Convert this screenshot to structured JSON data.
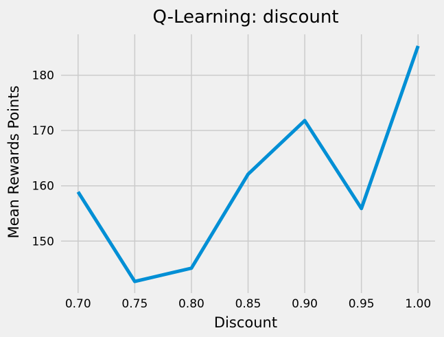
{
  "chart_data": {
    "type": "line",
    "title": "Q-Learning: discount",
    "xlabel": "Discount",
    "ylabel": "Mean Rewards Points",
    "x": [
      0.7,
      0.75,
      0.8,
      0.85,
      0.9,
      0.95,
      1.0
    ],
    "series": [
      {
        "values": [
          158.9,
          142.7,
          145.1,
          162.1,
          171.8,
          155.9,
          185.3
        ]
      }
    ],
    "xticks": [
      "0.70",
      "0.75",
      "0.80",
      "0.85",
      "0.90",
      "0.95",
      "1.00"
    ],
    "yticks": [
      "150",
      "160",
      "170",
      "180"
    ],
    "xlim": [
      0.685,
      1.015
    ],
    "ylim": [
      140.6,
      187.4
    ],
    "grid": true,
    "legend": "none",
    "colors": {
      "line": "#008fd5",
      "background": "#f0f0f0",
      "grid": "#cbcbcb"
    }
  }
}
